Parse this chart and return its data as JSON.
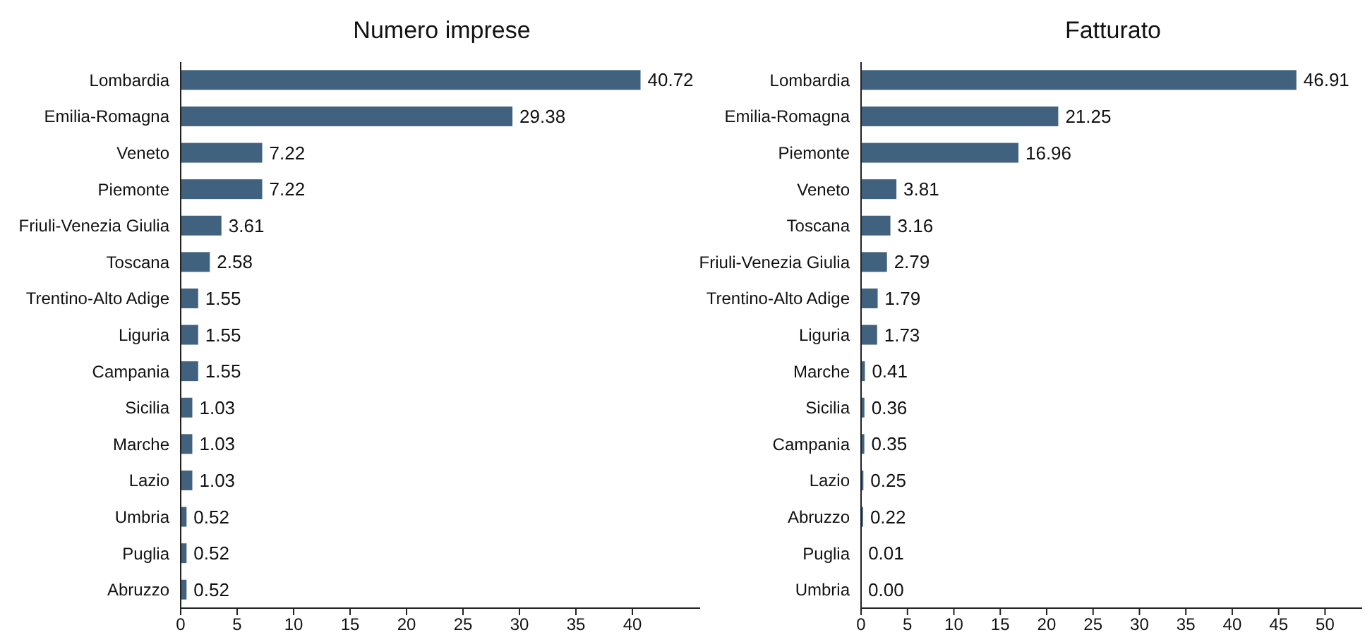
{
  "chart_data": [
    {
      "type": "bar",
      "orientation": "horizontal",
      "title": "Numero imprese",
      "categories": [
        "Lombardia",
        "Emilia-Romagna",
        "Veneto",
        "Piemonte",
        "Friuli-Venezia Giulia",
        "Toscana",
        "Trentino-Alto Adige",
        "Liguria",
        "Campania",
        "Sicilia",
        "Marche",
        "Lazio",
        "Umbria",
        "Puglia",
        "Abruzzo"
      ],
      "values": [
        40.72,
        29.38,
        7.22,
        7.22,
        3.61,
        2.58,
        1.55,
        1.55,
        1.55,
        1.03,
        1.03,
        1.03,
        0.52,
        0.52,
        0.52
      ],
      "value_labels": [
        "40.72",
        "29.38",
        "7.22",
        "7.22",
        "3.61",
        "2.58",
        "1.55",
        "1.55",
        "1.55",
        "1.03",
        "1.03",
        "1.03",
        "0.52",
        "0.52",
        "0.52"
      ],
      "color": "#41627e",
      "xlim": [
        0,
        46
      ],
      "xticks": [
        0,
        5,
        10,
        15,
        20,
        25,
        30,
        35,
        40
      ],
      "grid": false,
      "legend": false
    },
    {
      "type": "bar",
      "orientation": "horizontal",
      "title": "Fatturato",
      "categories": [
        "Lombardia",
        "Emilia-Romagna",
        "Piemonte",
        "Veneto",
        "Toscana",
        "Friuli-Venezia Giulia",
        "Trentino-Alto Adige",
        "Liguria",
        "Marche",
        "Sicilia",
        "Campania",
        "Lazio",
        "Abruzzo",
        "Puglia",
        "Umbria"
      ],
      "values": [
        46.91,
        21.25,
        16.96,
        3.81,
        3.16,
        2.79,
        1.79,
        1.73,
        0.41,
        0.36,
        0.35,
        0.25,
        0.22,
        0.01,
        0.0
      ],
      "value_labels": [
        "46.91",
        "21.25",
        "16.96",
        "3.81",
        "3.16",
        "2.79",
        "1.79",
        "1.73",
        "0.41",
        "0.36",
        "0.35",
        "0.25",
        "0.22",
        "0.01",
        "0.00"
      ],
      "color": "#41627e",
      "xlim": [
        0,
        54
      ],
      "xticks": [
        0,
        5,
        10,
        15,
        20,
        25,
        30,
        35,
        40,
        45,
        50
      ],
      "grid": false,
      "legend": false
    }
  ]
}
